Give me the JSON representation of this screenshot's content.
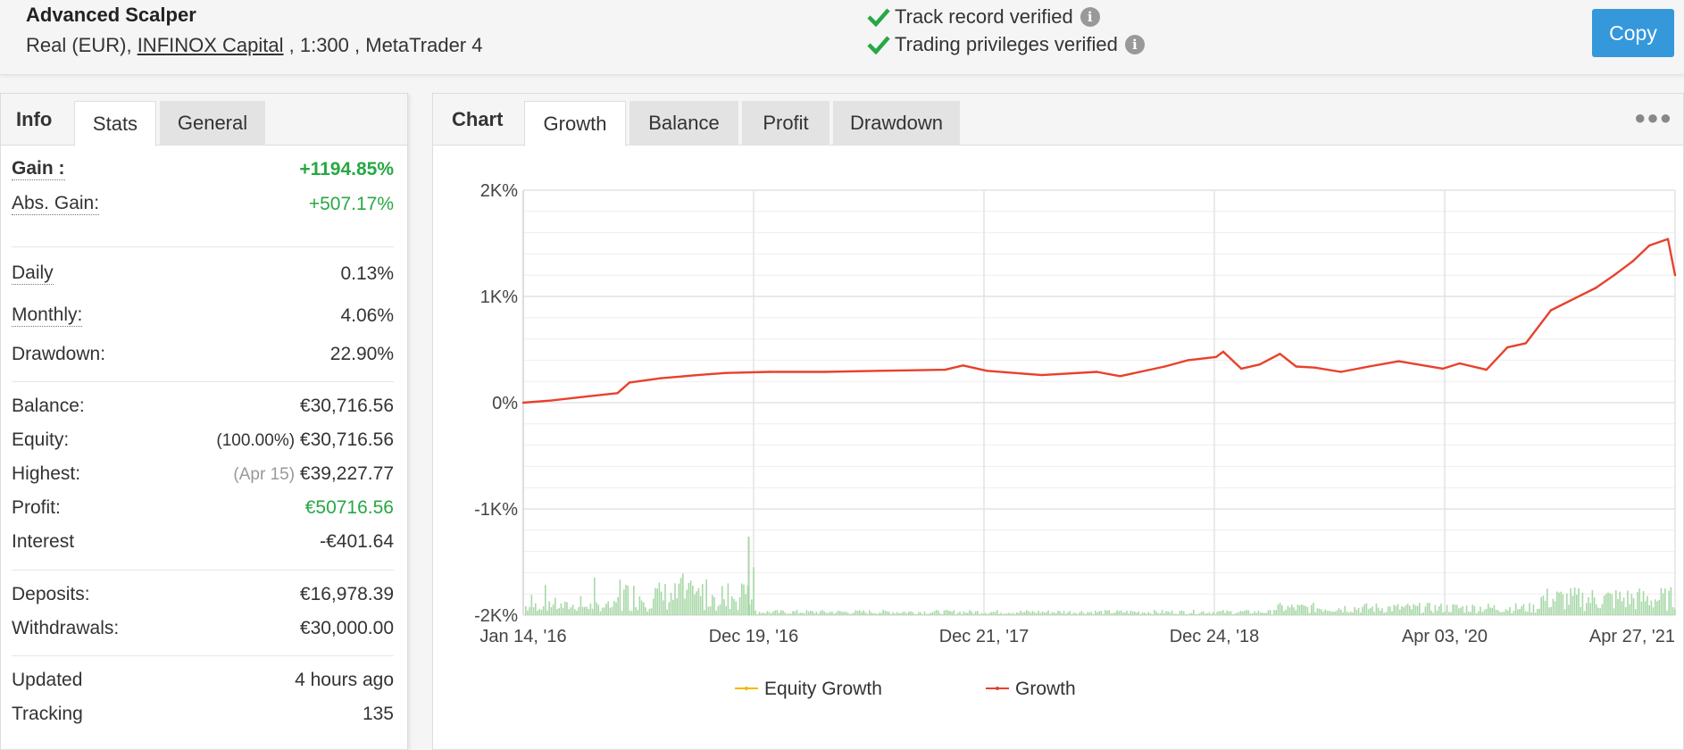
{
  "header": {
    "system_name": "Advanced Scalper",
    "meta_prefix": "Real (EUR), ",
    "broker": "INFINOX Capital",
    "meta_suffix": " , 1:300 , MetaTrader 4",
    "verify_1": "Track record verified",
    "verify_2": "Trading privileges verified",
    "copy_label": "Copy"
  },
  "left_tabs": [
    "Info",
    "Stats",
    "General"
  ],
  "stats": {
    "gain_label": "Gain :",
    "gain": "+1194.85%",
    "abs_gain_label": "Abs. Gain:",
    "abs_gain": "+507.17%",
    "daily_label": "Daily",
    "daily": "0.13%",
    "monthly_label": "Monthly:",
    "monthly": "4.06%",
    "drawdown_label": "Drawdown:",
    "drawdown": "22.90%",
    "balance_label": "Balance:",
    "balance": "€30,716.56",
    "equity_label": "Equity:",
    "equity_pct": "(100.00%)",
    "equity": "€30,716.56",
    "highest_label": "Highest:",
    "highest_date": "(Apr 15)",
    "highest": "€39,227.77",
    "profit_label": "Profit:",
    "profit": "€50716.56",
    "interest_label": "Interest",
    "interest": "-€401.64",
    "deposits_label": "Deposits:",
    "deposits": "€16,978.39",
    "withdrawals_label": "Withdrawals:",
    "withdrawals": "€30,000.00",
    "updated_label": "Updated",
    "updated": "4 hours ago",
    "tracking_label": "Tracking",
    "tracking": "135"
  },
  "right_tabs": [
    "Chart",
    "Growth",
    "Balance",
    "Profit",
    "Drawdown"
  ],
  "colors": {
    "growth": "#e8412c",
    "equity": "#f5b800",
    "volume": "#a8d8a8",
    "accent": "#3498db",
    "positive": "#27a844"
  },
  "chart_data": {
    "type": "line",
    "ylabel": "",
    "ylim": [
      -2000,
      2000
    ],
    "y_ticks": [
      "2K%",
      "1K%",
      "0%",
      "-1K%",
      "-2K%"
    ],
    "y_tick_values": [
      2000,
      1000,
      0,
      -1000,
      -2000
    ],
    "x_ticks": [
      "Jan 14, '16",
      "Dec 19, '16",
      "Dec 21, '17",
      "Dec 24, '18",
      "Apr 03, '20",
      "Apr 27, '21"
    ],
    "series": [
      {
        "name": "Growth",
        "x": [
          "2016-01-14",
          "2016-03-01",
          "2016-05-01",
          "2016-06-20",
          "2016-07-10",
          "2016-09-01",
          "2016-11-01",
          "2016-12-19",
          "2017-03-01",
          "2017-06-01",
          "2017-09-01",
          "2017-12-21",
          "2018-01-20",
          "2018-03-01",
          "2018-06-01",
          "2018-09-01",
          "2018-10-10",
          "2018-12-24",
          "2019-02-01",
          "2019-03-20",
          "2019-04-01",
          "2019-05-01",
          "2019-06-01",
          "2019-07-05",
          "2019-08-01",
          "2019-09-01",
          "2019-10-15",
          "2019-12-01",
          "2020-01-20",
          "2020-04-03",
          "2020-05-01",
          "2020-06-15",
          "2020-07-20",
          "2020-08-20",
          "2020-10-01",
          "2020-11-20",
          "2020-12-15",
          "2021-01-15",
          "2021-02-15",
          "2021-03-15",
          "2021-04-15",
          "2021-04-27"
        ],
        "values": [
          0,
          20,
          60,
          90,
          190,
          230,
          260,
          280,
          290,
          290,
          300,
          310,
          350,
          300,
          260,
          290,
          250,
          340,
          400,
          430,
          480,
          320,
          360,
          460,
          340,
          330,
          290,
          340,
          390,
          320,
          370,
          310,
          520,
          560,
          870,
          1010,
          1080,
          1200,
          1330,
          1480,
          1540,
          1200
        ]
      },
      {
        "name": "Equity Growth",
        "values": []
      }
    ],
    "legend": [
      "Equity Growth",
      "Growth"
    ],
    "legend_position": "bottom",
    "grid": true
  }
}
